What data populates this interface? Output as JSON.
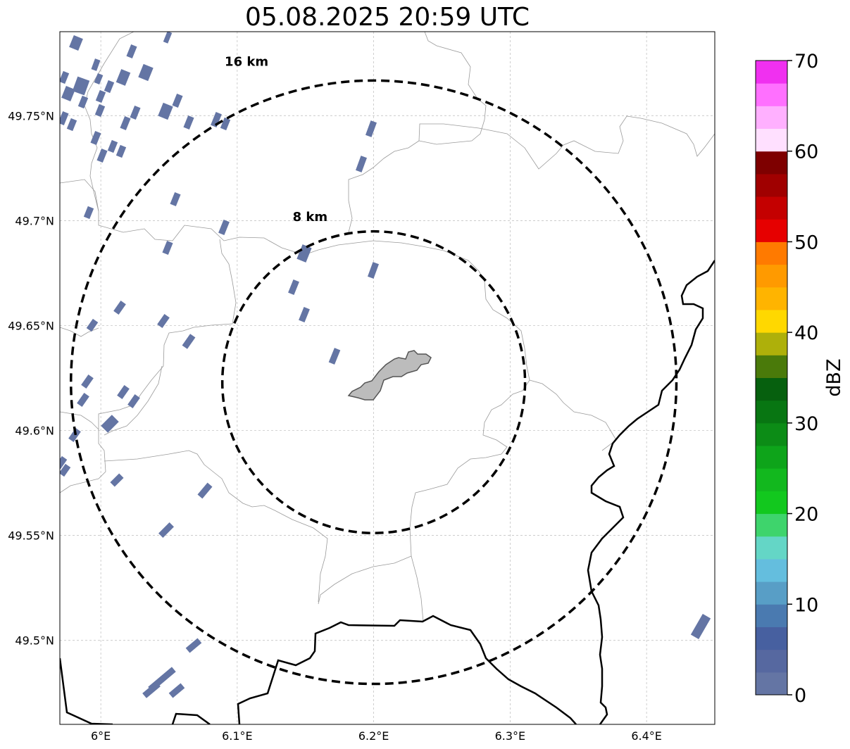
{
  "title": "05.08.2025 20:59 UTC",
  "map": {
    "lon_range": [
      5.97,
      6.45
    ],
    "lat_range": [
      49.46,
      49.79
    ],
    "center": {
      "lon": 6.2,
      "lat": 49.623
    },
    "lon_ticks": [
      {
        "value": 6.0,
        "label": "6°E"
      },
      {
        "value": 6.1,
        "label": "6.1°E"
      },
      {
        "value": 6.2,
        "label": "6.2°E"
      },
      {
        "value": 6.3,
        "label": "6.3°E"
      },
      {
        "value": 6.4,
        "label": "6.4°E"
      }
    ],
    "lat_ticks": [
      {
        "value": 49.5,
        "label": "49.5°N"
      },
      {
        "value": 49.55,
        "label": "49.55°N"
      },
      {
        "value": 49.6,
        "label": "49.6°N"
      },
      {
        "value": 49.65,
        "label": "49.65°N"
      },
      {
        "value": 49.7,
        "label": "49.7°N"
      },
      {
        "value": 49.75,
        "label": "49.75°N"
      }
    ],
    "grid": true,
    "rings": [
      {
        "radius_km": 8,
        "label": "8 km"
      },
      {
        "radius_km": 16,
        "label": "16 km"
      }
    ],
    "echo_color": "#6475a4"
  },
  "colorbar": {
    "label": "dBZ",
    "min": 0,
    "max": 70,
    "ticks": [
      {
        "value": 0,
        "label": "0"
      },
      {
        "value": 10,
        "label": "10"
      },
      {
        "value": 20,
        "label": "20"
      },
      {
        "value": 30,
        "label": "30"
      },
      {
        "value": 40,
        "label": "40"
      },
      {
        "value": 50,
        "label": "50"
      },
      {
        "value": 60,
        "label": "60"
      },
      {
        "value": 70,
        "label": "70"
      }
    ],
    "colors": [
      "#6475a4",
      "#5668a0",
      "#4760a0",
      "#4a7ab0",
      "#589ec6",
      "#64bede",
      "#64d6c6",
      "#3ed46c",
      "#12c81e",
      "#12b81e",
      "#0ea41a",
      "#0c8c16",
      "#087612",
      "#06600e",
      "#4a7a0a",
      "#aeb00a",
      "#ffd800",
      "#ffb400",
      "#ff9a00",
      "#ff7a00",
      "#e60000",
      "#c40000",
      "#a00000",
      "#7e0000",
      "#ffe0ff",
      "#ffb0ff",
      "#ff70ff",
      "#f030f0"
    ]
  }
}
